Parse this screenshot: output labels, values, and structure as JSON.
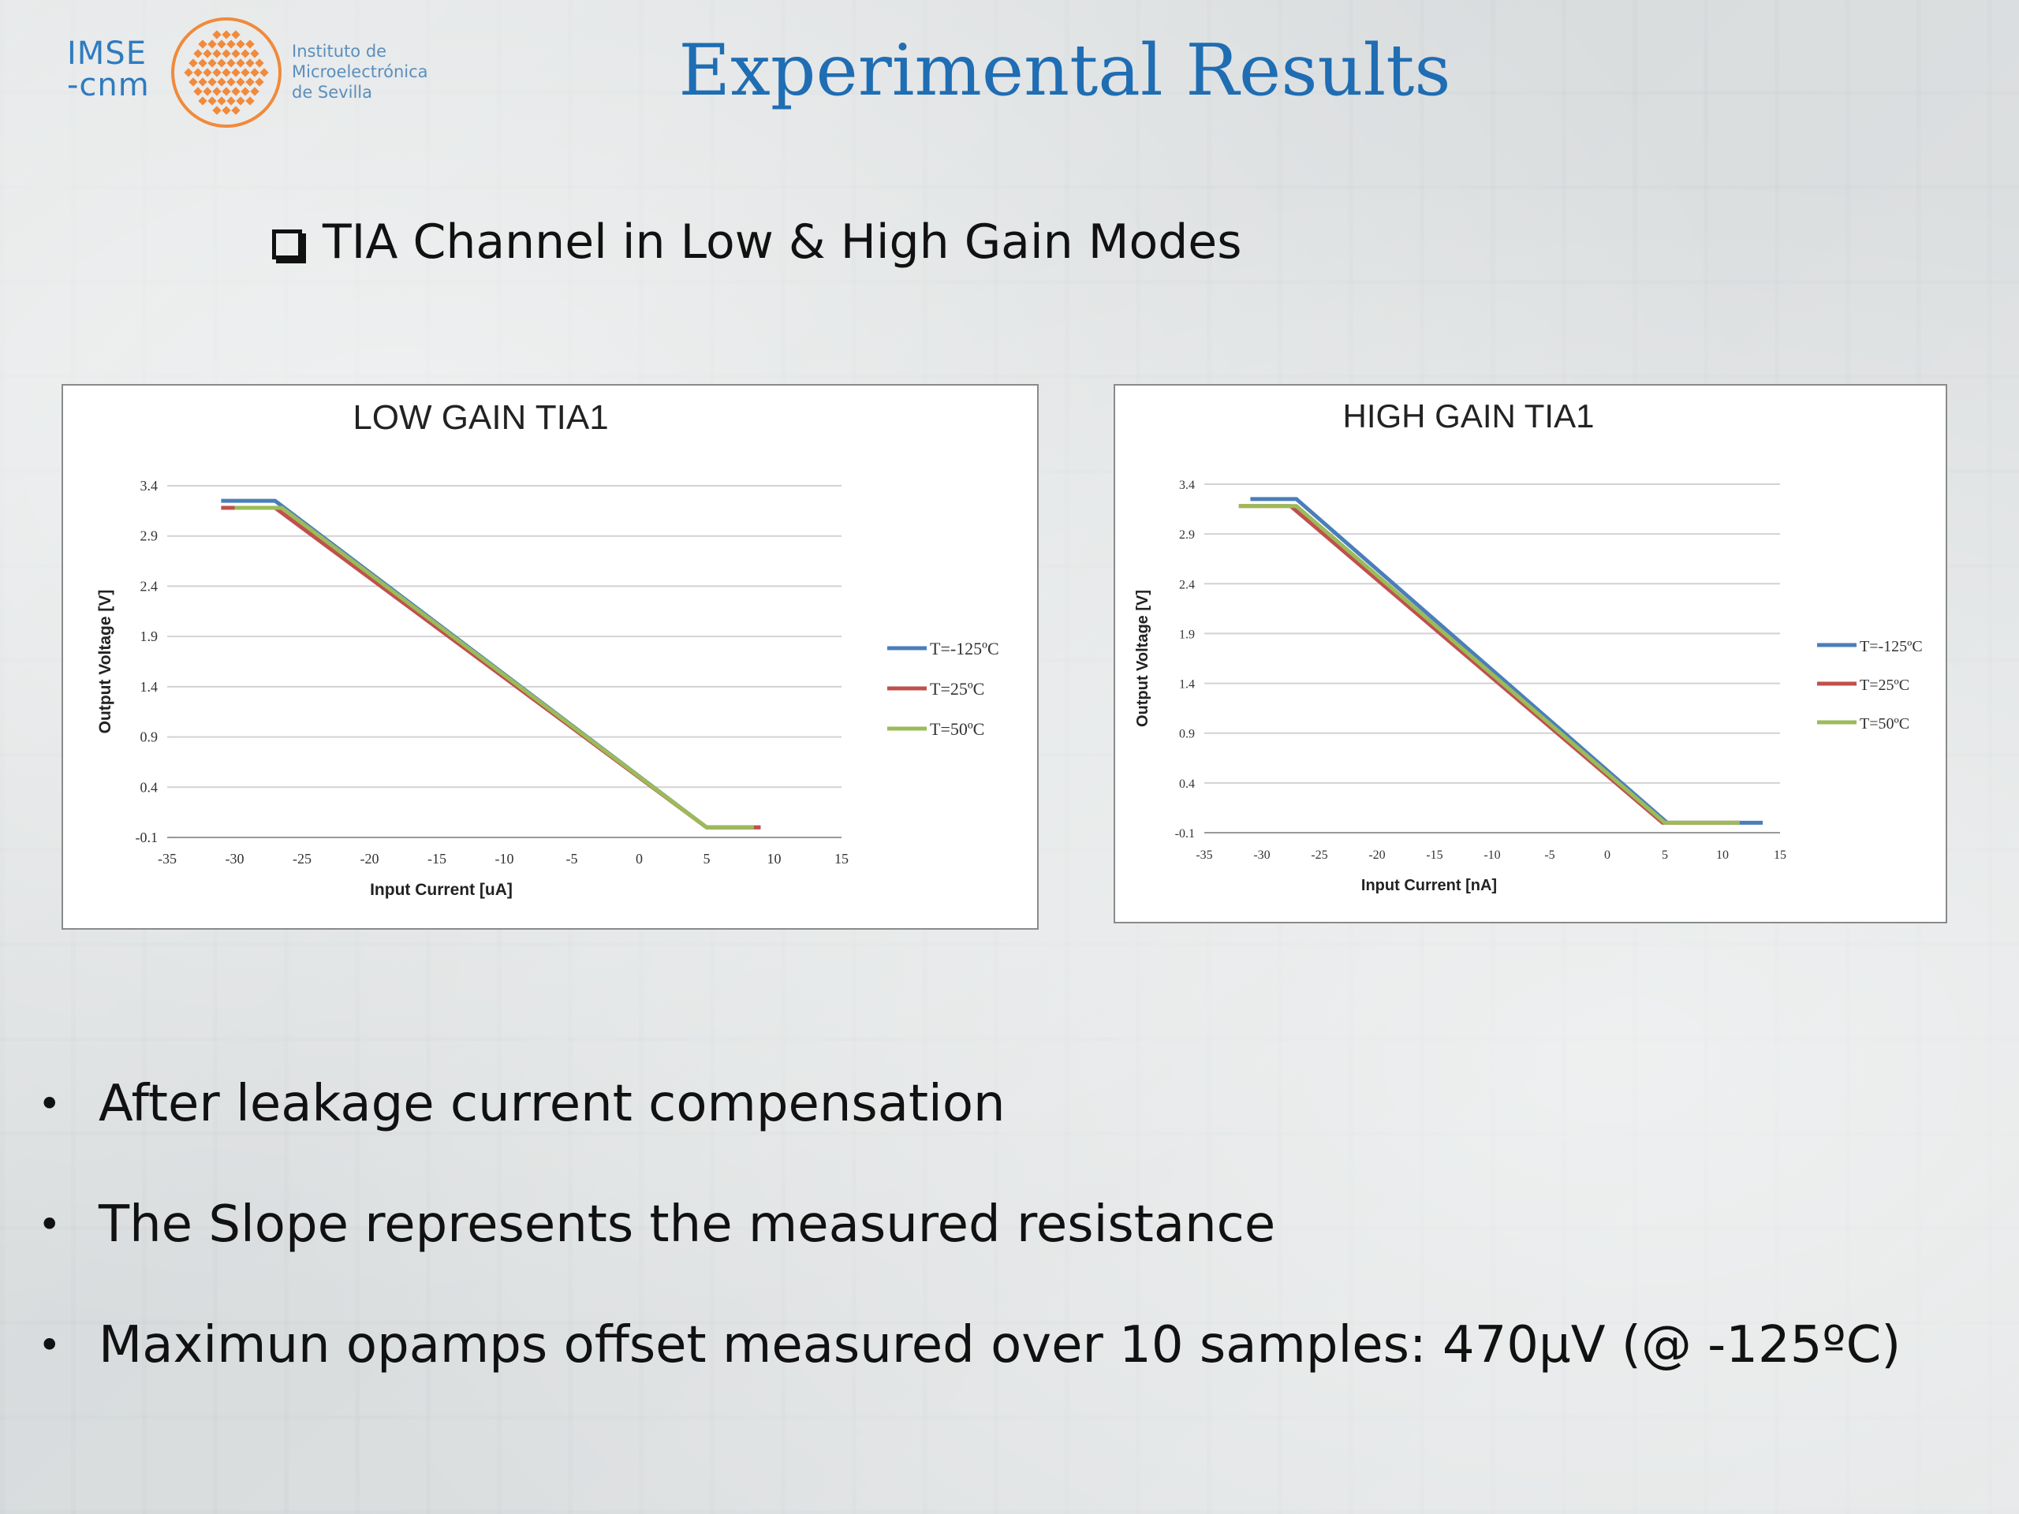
{
  "header": {
    "logo": {
      "abbr_line1": "IMSE",
      "abbr_line2": "-cnm",
      "name_lines": [
        "Instituto de",
        "Microelectrónica",
        "de Sevilla"
      ]
    },
    "title": "Experimental Results",
    "subtitle": "TIA Channel in Low & High Gain Modes"
  },
  "colors": {
    "title": "#1f6db3",
    "logo_orange": "#f08a3c",
    "series_blue": "#4a7ebb",
    "series_red": "#c0504d",
    "series_green": "#9bbb59"
  },
  "chart_data": [
    {
      "type": "line",
      "title": "LOW GAIN TIA1",
      "xlabel": "Input Current [uA]",
      "ylabel": "Output Voltage [V]",
      "xlim": [
        -35,
        15
      ],
      "ylim": [
        -0.1,
        3.4
      ],
      "x_ticks": [
        -35,
        -30,
        -25,
        -20,
        -15,
        -10,
        -5,
        0,
        5,
        10,
        15
      ],
      "y_ticks": [
        -0.1,
        0.4,
        0.9,
        1.4,
        1.9,
        2.4,
        2.9,
        3.4
      ],
      "grid": true,
      "legend_position": "right",
      "series": [
        {
          "name": "T=-125ºC",
          "color": "#4a7ebb",
          "x": [
            -31,
            -27,
            5,
            9
          ],
          "y": [
            3.25,
            3.25,
            0.0,
            0.0
          ]
        },
        {
          "name": "T=25ºC",
          "color": "#c0504d",
          "x": [
            -31,
            -27,
            5,
            9
          ],
          "y": [
            3.18,
            3.18,
            0.0,
            0.0
          ]
        },
        {
          "name": "T=50ºC",
          "color": "#9bbb59",
          "x": [
            -30,
            -26.5,
            5,
            8.5
          ],
          "y": [
            3.18,
            3.18,
            0.0,
            0.0
          ]
        }
      ]
    },
    {
      "type": "line",
      "title": "HIGH GAIN TIA1",
      "xlabel": "Input Current [nA]",
      "ylabel": "Output Voltage [V]",
      "xlim": [
        -35,
        15
      ],
      "ylim": [
        -0.1,
        3.4
      ],
      "x_ticks": [
        -35,
        -30,
        -25,
        -20,
        -15,
        -10,
        -5,
        0,
        5,
        10,
        15
      ],
      "y_ticks": [
        -0.1,
        0.4,
        0.9,
        1.4,
        1.9,
        2.4,
        2.9,
        3.4
      ],
      "grid": true,
      "legend_position": "right",
      "series": [
        {
          "name": "T=-125ºC",
          "color": "#4a7ebb",
          "x": [
            -31,
            -27,
            5.2,
            13.5
          ],
          "y": [
            3.25,
            3.25,
            0.0,
            0.0
          ]
        },
        {
          "name": "T=25ºC",
          "color": "#c0504d",
          "x": [
            -32,
            -27.5,
            4.8,
            11.5
          ],
          "y": [
            3.18,
            3.18,
            0.0,
            0.0
          ]
        },
        {
          "name": "T=50ºC",
          "color": "#9bbb59",
          "x": [
            -32,
            -27,
            5.0,
            11.5
          ],
          "y": [
            3.18,
            3.18,
            0.0,
            0.0
          ]
        }
      ]
    }
  ],
  "bullets": [
    "After leakage current compensation",
    "The Slope represents the measured resistance",
    "Maximun opamps offset measured over 10 samples: 470µV (@ -125ºC)"
  ],
  "bullet_symbol": "•"
}
